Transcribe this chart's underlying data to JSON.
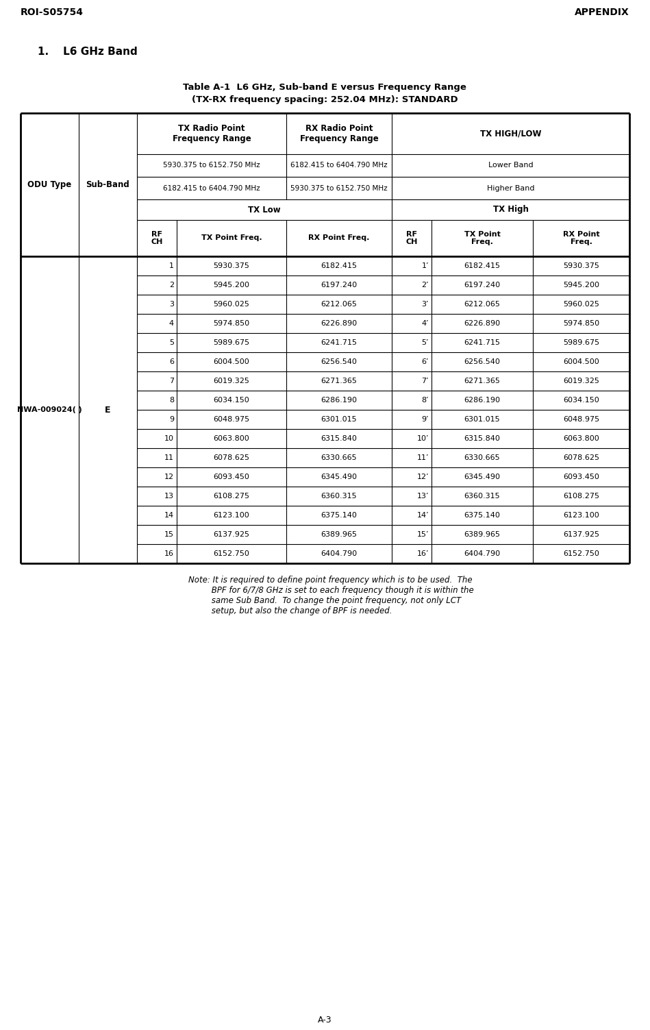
{
  "header_left": "ROI-S05754",
  "header_right": "APPENDIX",
  "section_title": "1.    L6 GHz Band",
  "table_title_line1": "Table A-1  L6 GHz, Sub-band E versus Frequency Range",
  "table_title_line2": "(TX-RX frequency spacing: 252.04 MHz): STANDARD",
  "odu_label": "NWA-009024( )",
  "sub_band_label": "E",
  "footer_label": "A-3",
  "data_rows": [
    {
      "rf_ch": "1",
      "tx_low": "5930.375",
      "rx_low": "6182.415",
      "rf_ch_h": "1’",
      "tx_high": "6182.415",
      "rx_high": "5930.375"
    },
    {
      "rf_ch": "2",
      "tx_low": "5945.200",
      "rx_low": "6197.240",
      "rf_ch_h": "2’",
      "tx_high": "6197.240",
      "rx_high": "5945.200"
    },
    {
      "rf_ch": "3",
      "tx_low": "5960.025",
      "rx_low": "6212.065",
      "rf_ch_h": "3’",
      "tx_high": "6212.065",
      "rx_high": "5960.025"
    },
    {
      "rf_ch": "4",
      "tx_low": "5974.850",
      "rx_low": "6226.890",
      "rf_ch_h": "4’",
      "tx_high": "6226.890",
      "rx_high": "5974.850"
    },
    {
      "rf_ch": "5",
      "tx_low": "5989.675",
      "rx_low": "6241.715",
      "rf_ch_h": "5’",
      "tx_high": "6241.715",
      "rx_high": "5989.675"
    },
    {
      "rf_ch": "6",
      "tx_low": "6004.500",
      "rx_low": "6256.540",
      "rf_ch_h": "6’",
      "tx_high": "6256.540",
      "rx_high": "6004.500"
    },
    {
      "rf_ch": "7",
      "tx_low": "6019.325",
      "rx_low": "6271.365",
      "rf_ch_h": "7’",
      "tx_high": "6271.365",
      "rx_high": "6019.325"
    },
    {
      "rf_ch": "8",
      "tx_low": "6034.150",
      "rx_low": "6286.190",
      "rf_ch_h": "8’",
      "tx_high": "6286.190",
      "rx_high": "6034.150"
    },
    {
      "rf_ch": "9",
      "tx_low": "6048.975",
      "rx_low": "6301.015",
      "rf_ch_h": "9’",
      "tx_high": "6301.015",
      "rx_high": "6048.975"
    },
    {
      "rf_ch": "10",
      "tx_low": "6063.800",
      "rx_low": "6315.840",
      "rf_ch_h": "10’",
      "tx_high": "6315.840",
      "rx_high": "6063.800"
    },
    {
      "rf_ch": "11",
      "tx_low": "6078.625",
      "rx_low": "6330.665",
      "rf_ch_h": "11’",
      "tx_high": "6330.665",
      "rx_high": "6078.625"
    },
    {
      "rf_ch": "12",
      "tx_low": "6093.450",
      "rx_low": "6345.490",
      "rf_ch_h": "12’",
      "tx_high": "6345.490",
      "rx_high": "6093.450"
    },
    {
      "rf_ch": "13",
      "tx_low": "6108.275",
      "rx_low": "6360.315",
      "rf_ch_h": "13’",
      "tx_high": "6360.315",
      "rx_high": "6108.275"
    },
    {
      "rf_ch": "14",
      "tx_low": "6123.100",
      "rx_low": "6375.140",
      "rf_ch_h": "14’",
      "tx_high": "6375.140",
      "rx_high": "6123.100"
    },
    {
      "rf_ch": "15",
      "tx_low": "6137.925",
      "rx_low": "6389.965",
      "rf_ch_h": "15’",
      "tx_high": "6389.965",
      "rx_high": "6137.925"
    },
    {
      "rf_ch": "16",
      "tx_low": "6152.750",
      "rx_low": "6404.790",
      "rf_ch_h": "16’",
      "tx_high": "6404.790",
      "rx_high": "6152.750"
    }
  ]
}
